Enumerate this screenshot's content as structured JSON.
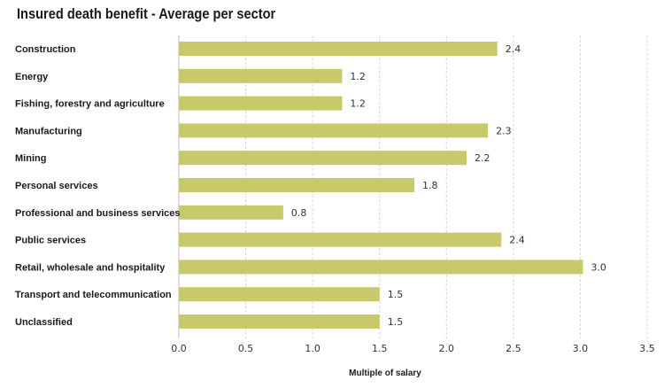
{
  "chart_data": {
    "type": "bar",
    "orientation": "horizontal",
    "title": "Insured death benefit - Average per sector",
    "xlabel": "Multiple of salary",
    "ylabel": "",
    "xlim": [
      0,
      3.5
    ],
    "xticks": [
      "0.0",
      "0.5",
      "1.0",
      "1.5",
      "2.0",
      "2.5",
      "3.0",
      "3.5"
    ],
    "grid": true,
    "bar_color": "#c8c96a",
    "categories": [
      "Construction",
      "Energy",
      "Fishing, forestry and agriculture",
      "Manufacturing",
      "Mining",
      "Personal services",
      "Professional and business services",
      "Public services",
      "Retail, wholesale and hospitality",
      "Transport and telecommunication",
      "Unclassified"
    ],
    "values": [
      2.38,
      1.22,
      1.22,
      2.31,
      2.15,
      1.76,
      0.78,
      2.41,
      3.02,
      1.5,
      1.5
    ],
    "value_labels": [
      "2.4",
      "1.2",
      "1.2",
      "2.3",
      "2.2",
      "1.8",
      "0.8",
      "2.4",
      "3.0",
      "1.5",
      "1.5"
    ]
  }
}
